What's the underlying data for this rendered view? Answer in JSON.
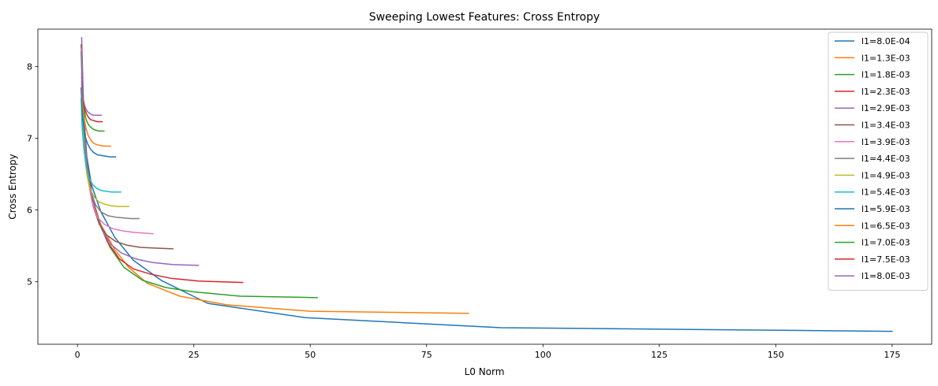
{
  "chart_data": {
    "type": "line",
    "title": "Sweeping Lowest Features: Cross Entropy",
    "xlabel": "L0 Norm",
    "ylabel": "Cross Entropy",
    "xlim": [
      -8.5,
      183.5
    ],
    "ylim": [
      4.13,
      8.52
    ],
    "x_ticks": [
      0,
      25,
      50,
      75,
      100,
      125,
      150,
      175
    ],
    "y_ticks": [
      5,
      6,
      7,
      8
    ],
    "grid": false,
    "legend_position": "top-right",
    "series": [
      {
        "name": "l1=8.0E-04",
        "color": "#1f77b4",
        "x": [
          1.2,
          1.5,
          2,
          3,
          5,
          8,
          12,
          18,
          28,
          49,
          91,
          175
        ],
        "y": [
          7.65,
          7.2,
          6.75,
          6.35,
          5.98,
          5.62,
          5.3,
          5.02,
          4.7,
          4.5,
          4.36,
          4.31
        ]
      },
      {
        "name": "l1=1.3E-03",
        "color": "#ff7f0e",
        "x": [
          1,
          1.5,
          2,
          3,
          5,
          8,
          11,
          15,
          22,
          32,
          50,
          84
        ],
        "y": [
          7.7,
          7.1,
          6.6,
          6.2,
          5.8,
          5.45,
          5.2,
          4.98,
          4.8,
          4.68,
          4.59,
          4.56
        ]
      },
      {
        "name": "l1=1.8E-03",
        "color": "#2ca02c",
        "x": [
          1,
          1.5,
          2,
          3,
          5,
          7,
          10,
          14,
          19,
          25,
          35,
          51.5
        ],
        "y": [
          7.75,
          7.15,
          6.65,
          6.2,
          5.78,
          5.48,
          5.2,
          5.02,
          4.92,
          4.86,
          4.8,
          4.78
        ]
      },
      {
        "name": "l1=2.3E-03",
        "color": "#d62728",
        "x": [
          1,
          1.5,
          2,
          3,
          4.5,
          6.5,
          9,
          12,
          15.5,
          20,
          26,
          35.5
        ],
        "y": [
          7.75,
          7.2,
          6.7,
          6.25,
          5.85,
          5.55,
          5.32,
          5.18,
          5.11,
          5.05,
          5.01,
          4.99
        ]
      },
      {
        "name": "l1=2.9E-03",
        "color": "#9467bd",
        "x": [
          0.9,
          1.3,
          1.8,
          2.6,
          3.8,
          5.3,
          7.2,
          9.5,
          12.5,
          16,
          20.5,
          26
        ],
        "y": [
          8.4,
          7.5,
          6.85,
          6.35,
          6.0,
          5.72,
          5.52,
          5.4,
          5.32,
          5.27,
          5.24,
          5.23
        ]
      },
      {
        "name": "l1=3.4E-03",
        "color": "#8c564b",
        "x": [
          0.8,
          1.2,
          1.7,
          2.4,
          3.4,
          4.7,
          6.3,
          8.3,
          10.7,
          13.5,
          16.5,
          20.5
        ],
        "y": [
          8.3,
          7.45,
          6.85,
          6.4,
          6.05,
          5.8,
          5.65,
          5.56,
          5.51,
          5.48,
          5.47,
          5.46
        ]
      },
      {
        "name": "l1=3.9E-03",
        "color": "#e377c2",
        "x": [
          0.8,
          1.1,
          1.6,
          2.2,
          3.1,
          4.3,
          5.8,
          7.6,
          9.7,
          11.9,
          14,
          16.2
        ],
        "y": [
          8.25,
          7.45,
          6.9,
          6.45,
          6.12,
          5.9,
          5.8,
          5.74,
          5.71,
          5.69,
          5.68,
          5.67
        ]
      },
      {
        "name": "l1=4.4E-03",
        "color": "#7f7f7f",
        "x": [
          0.8,
          1.1,
          1.5,
          2.1,
          2.9,
          3.9,
          5.1,
          6.6,
          8.2,
          9.9,
          11.5,
          13.2
        ],
        "y": [
          8.2,
          7.5,
          6.95,
          6.55,
          6.25,
          6.07,
          5.97,
          5.92,
          5.9,
          5.89,
          5.88,
          5.88
        ]
      },
      {
        "name": "l1=4.9E-03",
        "color": "#bcbd22",
        "x": [
          0.8,
          1.1,
          1.5,
          2.0,
          2.7,
          3.6,
          4.7,
          5.9,
          7.2,
          8.6,
          9.8,
          11
        ],
        "y": [
          7.7,
          7.15,
          6.8,
          6.5,
          6.3,
          6.18,
          6.11,
          6.08,
          6.06,
          6.05,
          6.05,
          6.05
        ]
      },
      {
        "name": "l1=5.4E-03",
        "color": "#17becf",
        "x": [
          0.8,
          1.0,
          1.4,
          1.9,
          2.5,
          3.3,
          4.2,
          5.2,
          6.3,
          7.3,
          8.2,
          9.3
        ],
        "y": [
          7.55,
          7.15,
          6.85,
          6.6,
          6.45,
          6.35,
          6.3,
          6.27,
          6.26,
          6.25,
          6.25,
          6.25
        ]
      },
      {
        "name": "l1=5.9E-03",
        "color": "#1f77b4",
        "x": [
          0.8,
          1.0,
          1.3,
          1.7,
          2.2,
          2.8,
          3.5,
          4.3,
          5.2,
          6.1,
          7.1,
          8.2
        ],
        "y": [
          7.7,
          7.4,
          7.18,
          7.02,
          6.92,
          6.85,
          6.8,
          6.77,
          6.76,
          6.75,
          6.74,
          6.74
        ]
      },
      {
        "name": "l1=6.5E-03",
        "color": "#ff7f0e",
        "x": [
          0.9,
          1.1,
          1.4,
          1.8,
          2.3,
          2.9,
          3.5,
          4.2,
          4.9,
          5.6,
          6.3,
          7.1
        ],
        "y": [
          7.75,
          7.5,
          7.3,
          7.15,
          7.04,
          6.97,
          6.93,
          6.91,
          6.9,
          6.89,
          6.89,
          6.89
        ]
      },
      {
        "name": "l1=7.0E-03",
        "color": "#2ca02c",
        "x": [
          0.9,
          1.1,
          1.4,
          1.7,
          2.1,
          2.6,
          3.1,
          3.6,
          4.1,
          4.6,
          5.1,
          5.7
        ],
        "y": [
          7.8,
          7.58,
          7.42,
          7.3,
          7.22,
          7.17,
          7.14,
          7.12,
          7.11,
          7.1,
          7.1,
          7.1
        ]
      },
      {
        "name": "l1=7.5E-03",
        "color": "#d62728",
        "x": [
          0.9,
          1.1,
          1.3,
          1.6,
          2.0,
          2.4,
          2.8,
          3.3,
          3.8,
          4.3,
          4.8,
          5.3
        ],
        "y": [
          7.85,
          7.65,
          7.5,
          7.4,
          7.33,
          7.29,
          7.26,
          7.25,
          7.24,
          7.23,
          7.23,
          7.23
        ]
      },
      {
        "name": "l1=8.0E-03",
        "color": "#9467bd",
        "x": [
          0.9,
          1.0,
          1.2,
          1.5,
          1.8,
          2.2,
          2.6,
          3.0,
          3.5,
          4.0,
          4.5,
          5.1
        ],
        "y": [
          7.9,
          7.7,
          7.57,
          7.47,
          7.41,
          7.37,
          7.35,
          7.33,
          7.32,
          7.32,
          7.32,
          7.32
        ]
      }
    ]
  }
}
